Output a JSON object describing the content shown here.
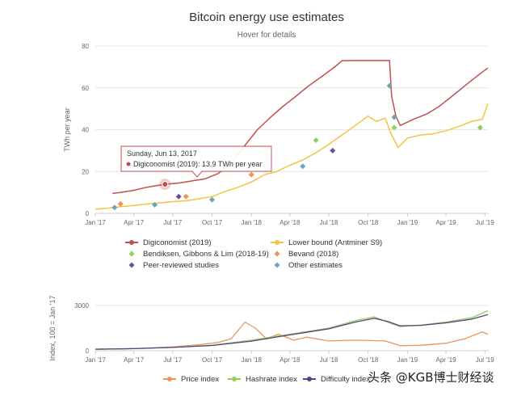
{
  "chart_data": [
    {
      "type": "line",
      "title": "Bitcoin energy use estimates",
      "subtitle": "Hover for details",
      "ylabel": "TWh per year",
      "xlabel": "",
      "xlim": [
        "2017-01-01",
        "2019-07-10"
      ],
      "ylim": [
        0,
        80
      ],
      "y_ticks": [
        "0",
        "20",
        "40",
        "60",
        "80"
      ],
      "x_ticks": [
        {
          "date": "2017-01-01",
          "label": "Jan '17"
        },
        {
          "date": "2017-04-01",
          "label": "Apr '17"
        },
        {
          "date": "2017-07-01",
          "label": "Jul '17"
        },
        {
          "date": "2017-10-01",
          "label": "Oct '17"
        },
        {
          "date": "2018-01-01",
          "label": "Jan '18"
        },
        {
          "date": "2018-04-01",
          "label": "Apr '18"
        },
        {
          "date": "2018-07-01",
          "label": "Jul '18"
        },
        {
          "date": "2018-10-01",
          "label": "Oct '18"
        },
        {
          "date": "2019-01-01",
          "label": "Jan '19"
        },
        {
          "date": "2019-04-01",
          "label": "Apr '19"
        },
        {
          "date": "2019-07-01",
          "label": "Jul '19"
        }
      ],
      "grid": "horizontal",
      "series": [
        {
          "name": "Digiconomist (2019)",
          "color": "#c0504d",
          "marker": "circle",
          "points": [
            [
              "2017-02-10",
              9.5
            ],
            [
              "2017-03-01",
              10.0
            ],
            [
              "2017-04-01",
              11.0
            ],
            [
              "2017-05-01",
              12.5
            ],
            [
              "2017-06-13",
              13.9
            ],
            [
              "2017-07-15",
              14.5
            ],
            [
              "2017-08-15",
              15.5
            ],
            [
              "2017-09-15",
              16.5
            ],
            [
              "2017-10-15",
              19.0
            ],
            [
              "2017-11-15",
              24.0
            ],
            [
              "2017-12-15",
              32.0
            ],
            [
              "2018-01-15",
              40.0
            ],
            [
              "2018-02-15",
              46.0
            ],
            [
              "2018-03-15",
              51.0
            ],
            [
              "2018-04-15",
              56.0
            ],
            [
              "2018-05-15",
              61.0
            ],
            [
              "2018-06-15",
              65.5
            ],
            [
              "2018-07-15",
              70.0
            ],
            [
              "2018-08-01",
              73.0
            ],
            [
              "2018-09-01",
              73.1
            ],
            [
              "2018-10-15",
              73.1
            ],
            [
              "2018-11-20",
              73.1
            ],
            [
              "2018-11-25",
              56.0
            ],
            [
              "2018-12-05",
              46.5
            ],
            [
              "2018-12-15",
              42.0
            ],
            [
              "2019-01-15",
              45.0
            ],
            [
              "2019-02-15",
              47.5
            ],
            [
              "2019-03-15",
              51.0
            ],
            [
              "2019-04-15",
              56.0
            ],
            [
              "2019-05-15",
              61.0
            ],
            [
              "2019-06-15",
              66.0
            ],
            [
              "2019-07-08",
              69.5
            ]
          ]
        },
        {
          "name": "Lower bound (Antminer S9)",
          "color": "#f5c342",
          "marker": "circle",
          "points": [
            [
              "2017-01-01",
              2.0
            ],
            [
              "2017-02-01",
              2.5
            ],
            [
              "2017-03-01",
              3.2
            ],
            [
              "2017-04-01",
              3.8
            ],
            [
              "2017-05-01",
              4.5
            ],
            [
              "2017-06-01",
              5.0
            ],
            [
              "2017-07-01",
              5.6
            ],
            [
              "2017-08-01",
              6.0
            ],
            [
              "2017-09-01",
              7.0
            ],
            [
              "2017-10-01",
              8.0
            ],
            [
              "2017-11-01",
              10.5
            ],
            [
              "2017-12-01",
              12.5
            ],
            [
              "2018-01-01",
              15.0
            ],
            [
              "2018-02-01",
              18.5
            ],
            [
              "2018-03-01",
              20.0
            ],
            [
              "2018-04-01",
              23.0
            ],
            [
              "2018-05-01",
              25.5
            ],
            [
              "2018-06-01",
              29.0
            ],
            [
              "2018-07-01",
              33.0
            ],
            [
              "2018-08-01",
              37.5
            ],
            [
              "2018-09-01",
              42.0
            ],
            [
              "2018-10-01",
              46.5
            ],
            [
              "2018-10-20",
              44.0
            ],
            [
              "2018-11-10",
              45.5
            ],
            [
              "2018-11-25",
              37.5
            ],
            [
              "2018-12-10",
              31.5
            ],
            [
              "2019-01-01",
              36.0
            ],
            [
              "2019-02-01",
              37.5
            ],
            [
              "2019-03-01",
              38.0
            ],
            [
              "2019-04-01",
              39.5
            ],
            [
              "2019-05-01",
              41.5
            ],
            [
              "2019-06-01",
              44.0
            ],
            [
              "2019-06-25",
              45.0
            ],
            [
              "2019-07-08",
              52.5
            ]
          ]
        }
      ],
      "estimates": [
        {
          "name": "Bendiksen, Gibbons & Lim (2018-19)",
          "color": "#8fd15a",
          "marker": "diamond",
          "points": [
            [
              "2018-06-01",
              35.0
            ],
            [
              "2018-12-01",
              41.0
            ],
            [
              "2019-06-20",
              41.0
            ]
          ]
        },
        {
          "name": "Bevand (2018)",
          "color": "#e8965a",
          "marker": "diamond",
          "points": [
            [
              "2017-03-01",
              4.5
            ],
            [
              "2017-08-01",
              8.0
            ],
            [
              "2018-01-01",
              18.5
            ]
          ]
        },
        {
          "name": "Peer-reviewed studies",
          "color": "#6b4f9a",
          "marker": "diamond",
          "points": [
            [
              "2017-07-15",
              8.0
            ],
            [
              "2018-07-10",
              30.0
            ]
          ]
        },
        {
          "name": "Other estimates",
          "color": "#6aa6b8",
          "marker": "diamond",
          "points": [
            [
              "2017-02-15",
              2.8
            ],
            [
              "2017-05-20",
              4.1
            ],
            [
              "2017-10-01",
              6.5
            ],
            [
              "2018-05-01",
              22.5
            ],
            [
              "2018-11-20",
              61.0
            ],
            [
              "2018-12-01",
              46.0
            ]
          ]
        }
      ],
      "legend": [
        {
          "name": "Digiconomist (2019)",
          "color": "#c0504d",
          "marker": "circle-line"
        },
        {
          "name": "Lower bound (Antminer S9)",
          "color": "#f5c342",
          "marker": "circle-line"
        },
        {
          "name": "Bendiksen, Gibbons & Lim (2018-19)",
          "color": "#8fd15a",
          "marker": "diamond"
        },
        {
          "name": "Bevand (2018)",
          "color": "#e8965a",
          "marker": "diamond"
        },
        {
          "name": "Peer-reviewed studies",
          "color": "#6b4f9a",
          "marker": "diamond"
        },
        {
          "name": "Other estimates",
          "color": "#6aa6b8",
          "marker": "diamond"
        }
      ],
      "legend_placement": "bottom",
      "tooltip": {
        "date_text": "Sunday, Jun 13, 2017",
        "series_text": "Digiconomist (2019): 13.9 TWh per year",
        "point": [
          "2017-06-13",
          13.9
        ],
        "color": "#c0504d"
      }
    },
    {
      "type": "line",
      "title": "",
      "ylabel": "Index, 100 = Jan '17",
      "xlim": [
        "2017-01-01",
        "2019-07-10"
      ],
      "ylim": [
        0,
        3000
      ],
      "y_ticks": [
        "0",
        "3000"
      ],
      "x_ticks": [
        {
          "date": "2017-01-01",
          "label": "Jan '17"
        },
        {
          "date": "2017-04-01",
          "label": "Apr '17"
        },
        {
          "date": "2017-07-01",
          "label": "Jul '17"
        },
        {
          "date": "2017-10-01",
          "label": "Oct '17"
        },
        {
          "date": "2018-01-01",
          "label": "Jan '18"
        },
        {
          "date": "2018-04-01",
          "label": "Apr '18"
        },
        {
          "date": "2018-07-01",
          "label": "Jul '18"
        },
        {
          "date": "2018-10-01",
          "label": "Oct '18"
        },
        {
          "date": "2019-01-01",
          "label": "Jan '19"
        },
        {
          "date": "2019-04-01",
          "label": "Apr '19"
        },
        {
          "date": "2019-07-01",
          "label": "Jul '19"
        }
      ],
      "series": [
        {
          "name": "Price index",
          "color": "#e8965a",
          "points": [
            [
              "2017-01-01",
              100
            ],
            [
              "2017-03-01",
              120
            ],
            [
              "2017-05-01",
              170
            ],
            [
              "2017-07-01",
              250
            ],
            [
              "2017-09-01",
              400
            ],
            [
              "2017-10-15",
              550
            ],
            [
              "2017-11-15",
              800
            ],
            [
              "2017-12-17",
              1900
            ],
            [
              "2018-01-10",
              1500
            ],
            [
              "2018-02-05",
              800
            ],
            [
              "2018-03-05",
              1100
            ],
            [
              "2018-04-10",
              700
            ],
            [
              "2018-05-10",
              900
            ],
            [
              "2018-07-01",
              650
            ],
            [
              "2018-09-01",
              700
            ],
            [
              "2018-11-10",
              650
            ],
            [
              "2018-12-15",
              330
            ],
            [
              "2019-02-01",
              360
            ],
            [
              "2019-04-01",
              500
            ],
            [
              "2019-05-15",
              800
            ],
            [
              "2019-06-25",
              1250
            ],
            [
              "2019-07-08",
              1100
            ]
          ]
        },
        {
          "name": "Hashrate index",
          "color": "#8fd15a",
          "points": [
            [
              "2017-01-01",
              100
            ],
            [
              "2017-04-01",
              140
            ],
            [
              "2017-07-01",
              230
            ],
            [
              "2017-10-01",
              370
            ],
            [
              "2018-01-01",
              700
            ],
            [
              "2018-04-01",
              1100
            ],
            [
              "2018-07-01",
              1500
            ],
            [
              "2018-09-01",
              2000
            ],
            [
              "2018-10-15",
              2250
            ],
            [
              "2018-11-15",
              1900
            ],
            [
              "2018-12-15",
              1600
            ],
            [
              "2019-02-01",
              1700
            ],
            [
              "2019-04-01",
              1900
            ],
            [
              "2019-06-01",
              2200
            ],
            [
              "2019-07-08",
              2650
            ]
          ]
        },
        {
          "name": "Difficulty index",
          "color": "#5b3f85",
          "points": [
            [
              "2017-01-01",
              100
            ],
            [
              "2017-04-01",
              140
            ],
            [
              "2017-07-01",
              220
            ],
            [
              "2017-10-01",
              350
            ],
            [
              "2018-01-01",
              640
            ],
            [
              "2018-04-01",
              1050
            ],
            [
              "2018-07-01",
              1450
            ],
            [
              "2018-09-01",
              1900
            ],
            [
              "2018-10-15",
              2150
            ],
            [
              "2018-11-15",
              1950
            ],
            [
              "2018-12-15",
              1650
            ],
            [
              "2019-02-01",
              1680
            ],
            [
              "2019-04-01",
              1850
            ],
            [
              "2019-06-01",
              2100
            ],
            [
              "2019-07-08",
              2400
            ]
          ]
        }
      ],
      "legend": [
        {
          "name": "Price index",
          "color": "#e8965a"
        },
        {
          "name": "Hashrate index",
          "color": "#8fd15a"
        },
        {
          "name": "Difficulty index",
          "color": "#5b3f85"
        }
      ],
      "legend_placement": "bottom"
    }
  ],
  "watermark": "头条 @KGB博士财经谈"
}
